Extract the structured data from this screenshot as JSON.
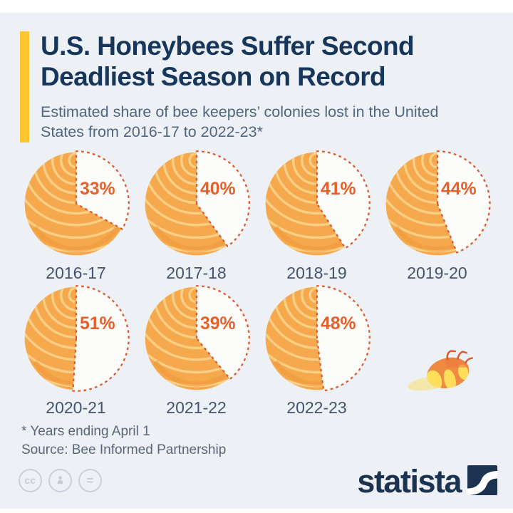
{
  "header": {
    "title_line1": "U.S. Honeybees Suffer Second",
    "title_line2": "Deadliest Season on Record",
    "subtitle_line1": "Estimated share of bee keepers’ colonies lost in the United",
    "subtitle_line2": "States from 2016-17 to 2022-23*",
    "accent_color": "#FFC62E",
    "title_color": "#17365C",
    "subtitle_color": "#50667E"
  },
  "chart_data": {
    "type": "pie",
    "title": "Estimated share of bee keepers’ colonies lost in the United States from 2016-17 to 2022-23*",
    "categories": [
      "2016-17",
      "2017-18",
      "2018-19",
      "2019-20",
      "2020-21",
      "2021-22",
      "2022-23"
    ],
    "values": [
      33,
      40,
      41,
      44,
      51,
      39,
      48
    ],
    "unit": "%",
    "layout": {
      "grid": "4 columns x 2 rows, last cell holds dead-bee illustration",
      "wedge_start": "12 o'clock, sweeps clockwise by value",
      "wedge_style": "white cut-out with dashed outline, percent label inside"
    },
    "colors": {
      "ball": "#F6A94C",
      "rings": "#FACF85",
      "ball_shade": "#EC9638",
      "wedge_fill": "#FCFCFA",
      "wedge_stroke": "#DC5B2E",
      "label": "#E5602A",
      "category_label": "#44526A"
    }
  },
  "footer": {
    "footnote": "* Years ending April 1",
    "source": "Source: Bee Informed Partnership"
  },
  "branding": {
    "logo_text": "statista",
    "logo_color": "#1B3350",
    "license": {
      "cc_label": "cc",
      "nd_label": "="
    }
  },
  "background": {
    "page": "#FFFFFF",
    "card": "#EDF1F6"
  }
}
